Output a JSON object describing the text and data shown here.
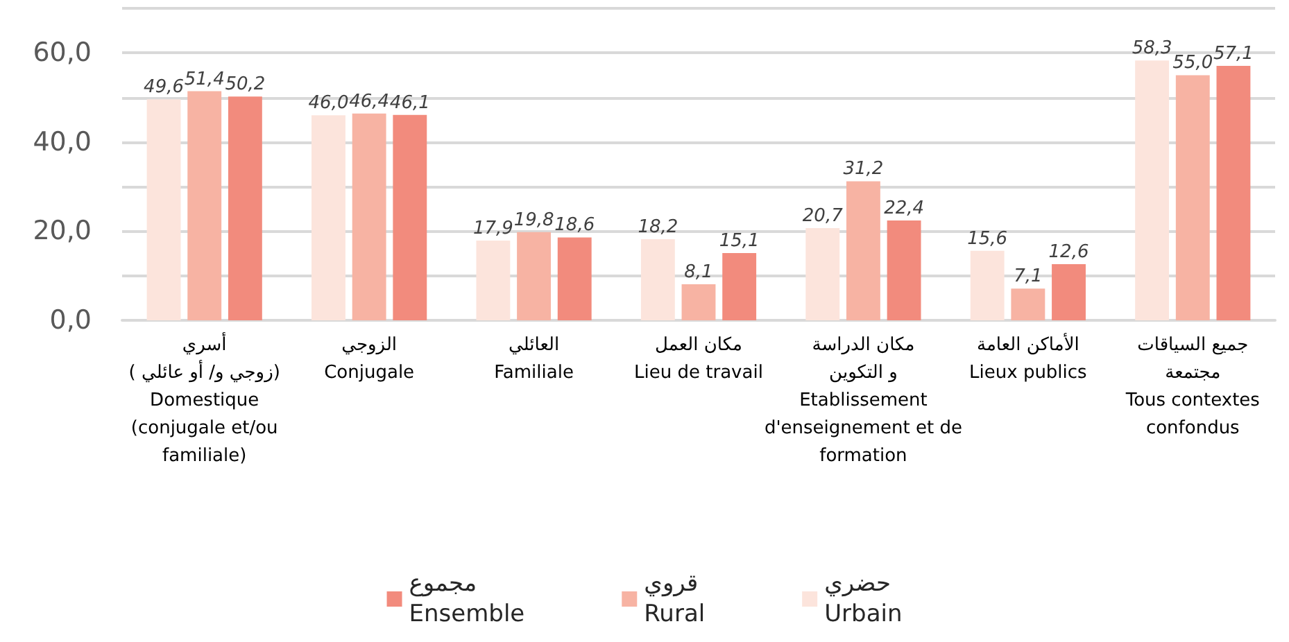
{
  "chart_data": {
    "type": "bar",
    "categories": [
      "أسري\n( زوجي و/ أو عائلي)\nDomestique\n(conjugale et/ou\nfamiliale)",
      "الزوجي\nConjugale",
      "العائلي\nFamiliale",
      "مكان العمل\nLieu de travail",
      "مكان الدراسة\nو التكوين\nEtablissement\nd'enseignement et de\nformation",
      "الأماكن العامة\nLieux publics",
      "جميع السياقات\nمجتمعة\nTous contextes\nconfondus"
    ],
    "series": [
      {
        "name": "حضري\nUrbain",
        "color": "#fce4dc",
        "values": [
          49.6,
          46.0,
          17.9,
          18.2,
          20.7,
          15.6,
          58.3
        ],
        "value_labels": [
          "49,6",
          "46,0",
          "17,9",
          "18,2",
          "20,7",
          "15,6",
          "58,3"
        ]
      },
      {
        "name": "قروي\nRural",
        "color": "#f7b3a3",
        "values": [
          51.4,
          46.4,
          19.8,
          8.1,
          31.2,
          7.1,
          55.0
        ],
        "value_labels": [
          "51,4",
          "46,4",
          "19,8",
          "8,1",
          "31,2",
          "7,1",
          "55,0"
        ]
      },
      {
        "name": "مجموع\nEnsemble",
        "color": "#f28b7d",
        "values": [
          50.2,
          46.1,
          18.6,
          15.1,
          22.4,
          12.6,
          57.1
        ],
        "value_labels": [
          "50,2",
          "46,1",
          "18,6",
          "15,1",
          "22,4",
          "12,6",
          "57,1"
        ]
      }
    ],
    "ylim": [
      0,
      70
    ],
    "yticks": [
      {
        "value": 0,
        "label": "0,0"
      },
      {
        "value": 10,
        "label": null
      },
      {
        "value": 20,
        "label": "20,0"
      },
      {
        "value": 30,
        "label": null
      },
      {
        "value": 40,
        "label": "40,0"
      },
      {
        "value": 50,
        "label": null
      },
      {
        "value": 60,
        "label": "60,0"
      },
      {
        "value": 70,
        "label": null
      }
    ],
    "grid": true,
    "legend": "bottom"
  }
}
